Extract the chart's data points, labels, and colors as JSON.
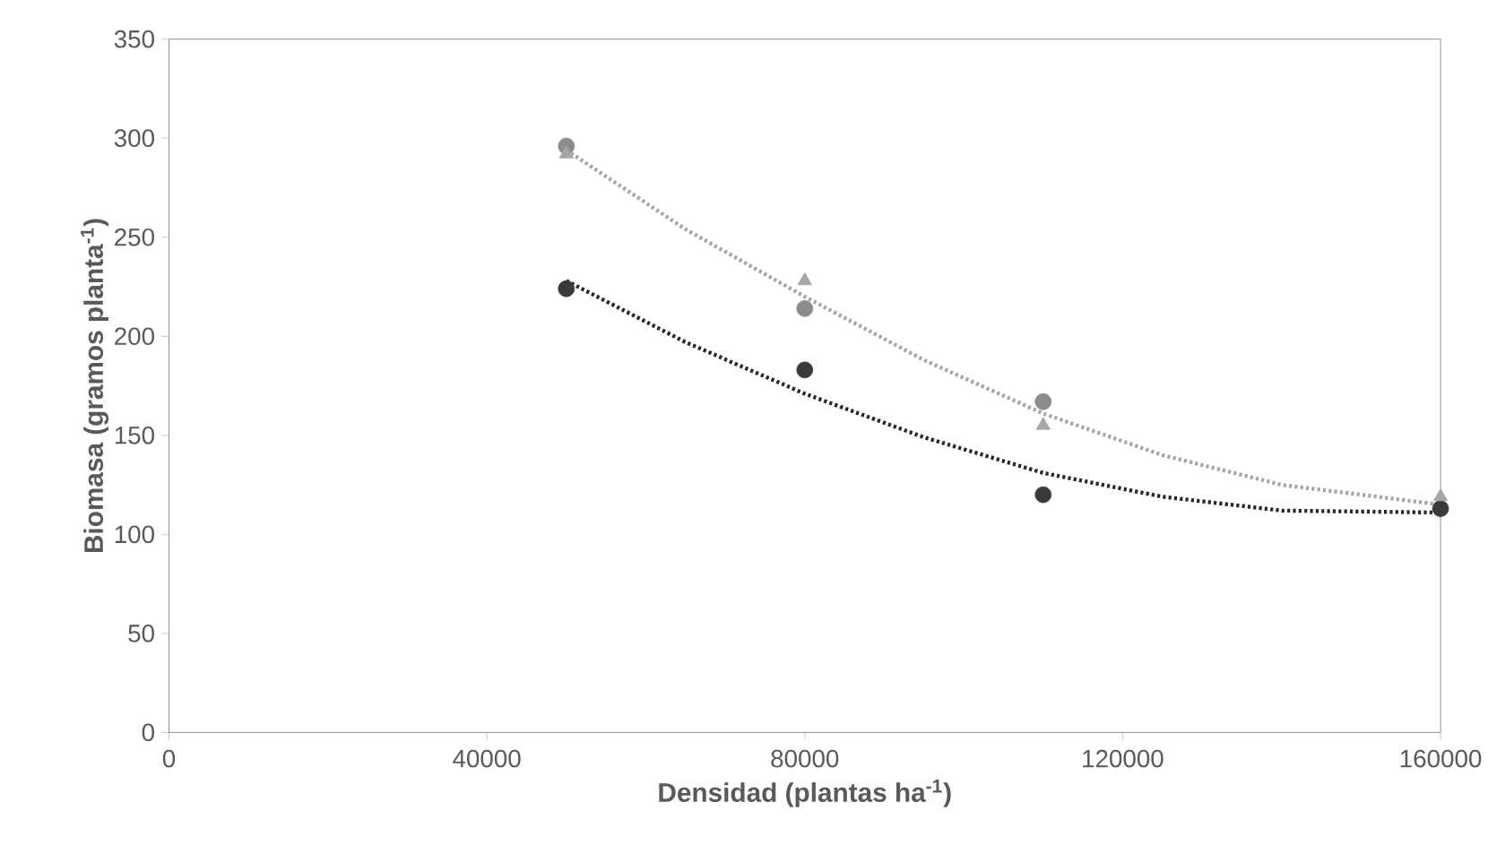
{
  "chart_data": {
    "type": "scatter",
    "xlabel": "Densidad (plantas ha$^{-1}$)",
    "ylabel": "Biomasa (gramos planta$^{-1}$)",
    "xlim": [
      0,
      160000
    ],
    "xticks": [
      0,
      40000,
      80000,
      120000,
      160000
    ],
    "ylim": [
      0,
      350
    ],
    "yticks": [
      0,
      50,
      100,
      150,
      200,
      250,
      300,
      350
    ],
    "series": [
      {
        "marker": "circle",
        "color": "#8c8c8c",
        "x": [
          50000,
          80000,
          110000
        ],
        "values": [
          296,
          214,
          167
        ]
      },
      {
        "marker": "circle",
        "color": "#3a3a3a",
        "x": [
          50000,
          80000,
          110000,
          160000
        ],
        "values": [
          224,
          183,
          120,
          113
        ]
      },
      {
        "marker": "triangle",
        "color": "#a6a6a6",
        "x": [
          50000,
          80000,
          110000,
          160000
        ],
        "values": [
          292,
          228,
          155,
          119
        ]
      },
      {
        "type": "line",
        "line_style": "dotted",
        "color": "#a6a6a6",
        "x": [
          50000,
          65000,
          80000,
          95000,
          110000,
          125000,
          140000,
          160000
        ],
        "values": [
          294,
          254,
          220,
          188,
          161,
          140,
          125,
          115
        ]
      },
      {
        "type": "line",
        "line_style": "dotted",
        "color": "#262626",
        "x": [
          50000,
          65000,
          80000,
          95000,
          110000,
          125000,
          140000,
          160000
        ],
        "values": [
          228,
          197,
          171,
          149,
          131,
          119,
          112,
          111
        ]
      }
    ]
  }
}
